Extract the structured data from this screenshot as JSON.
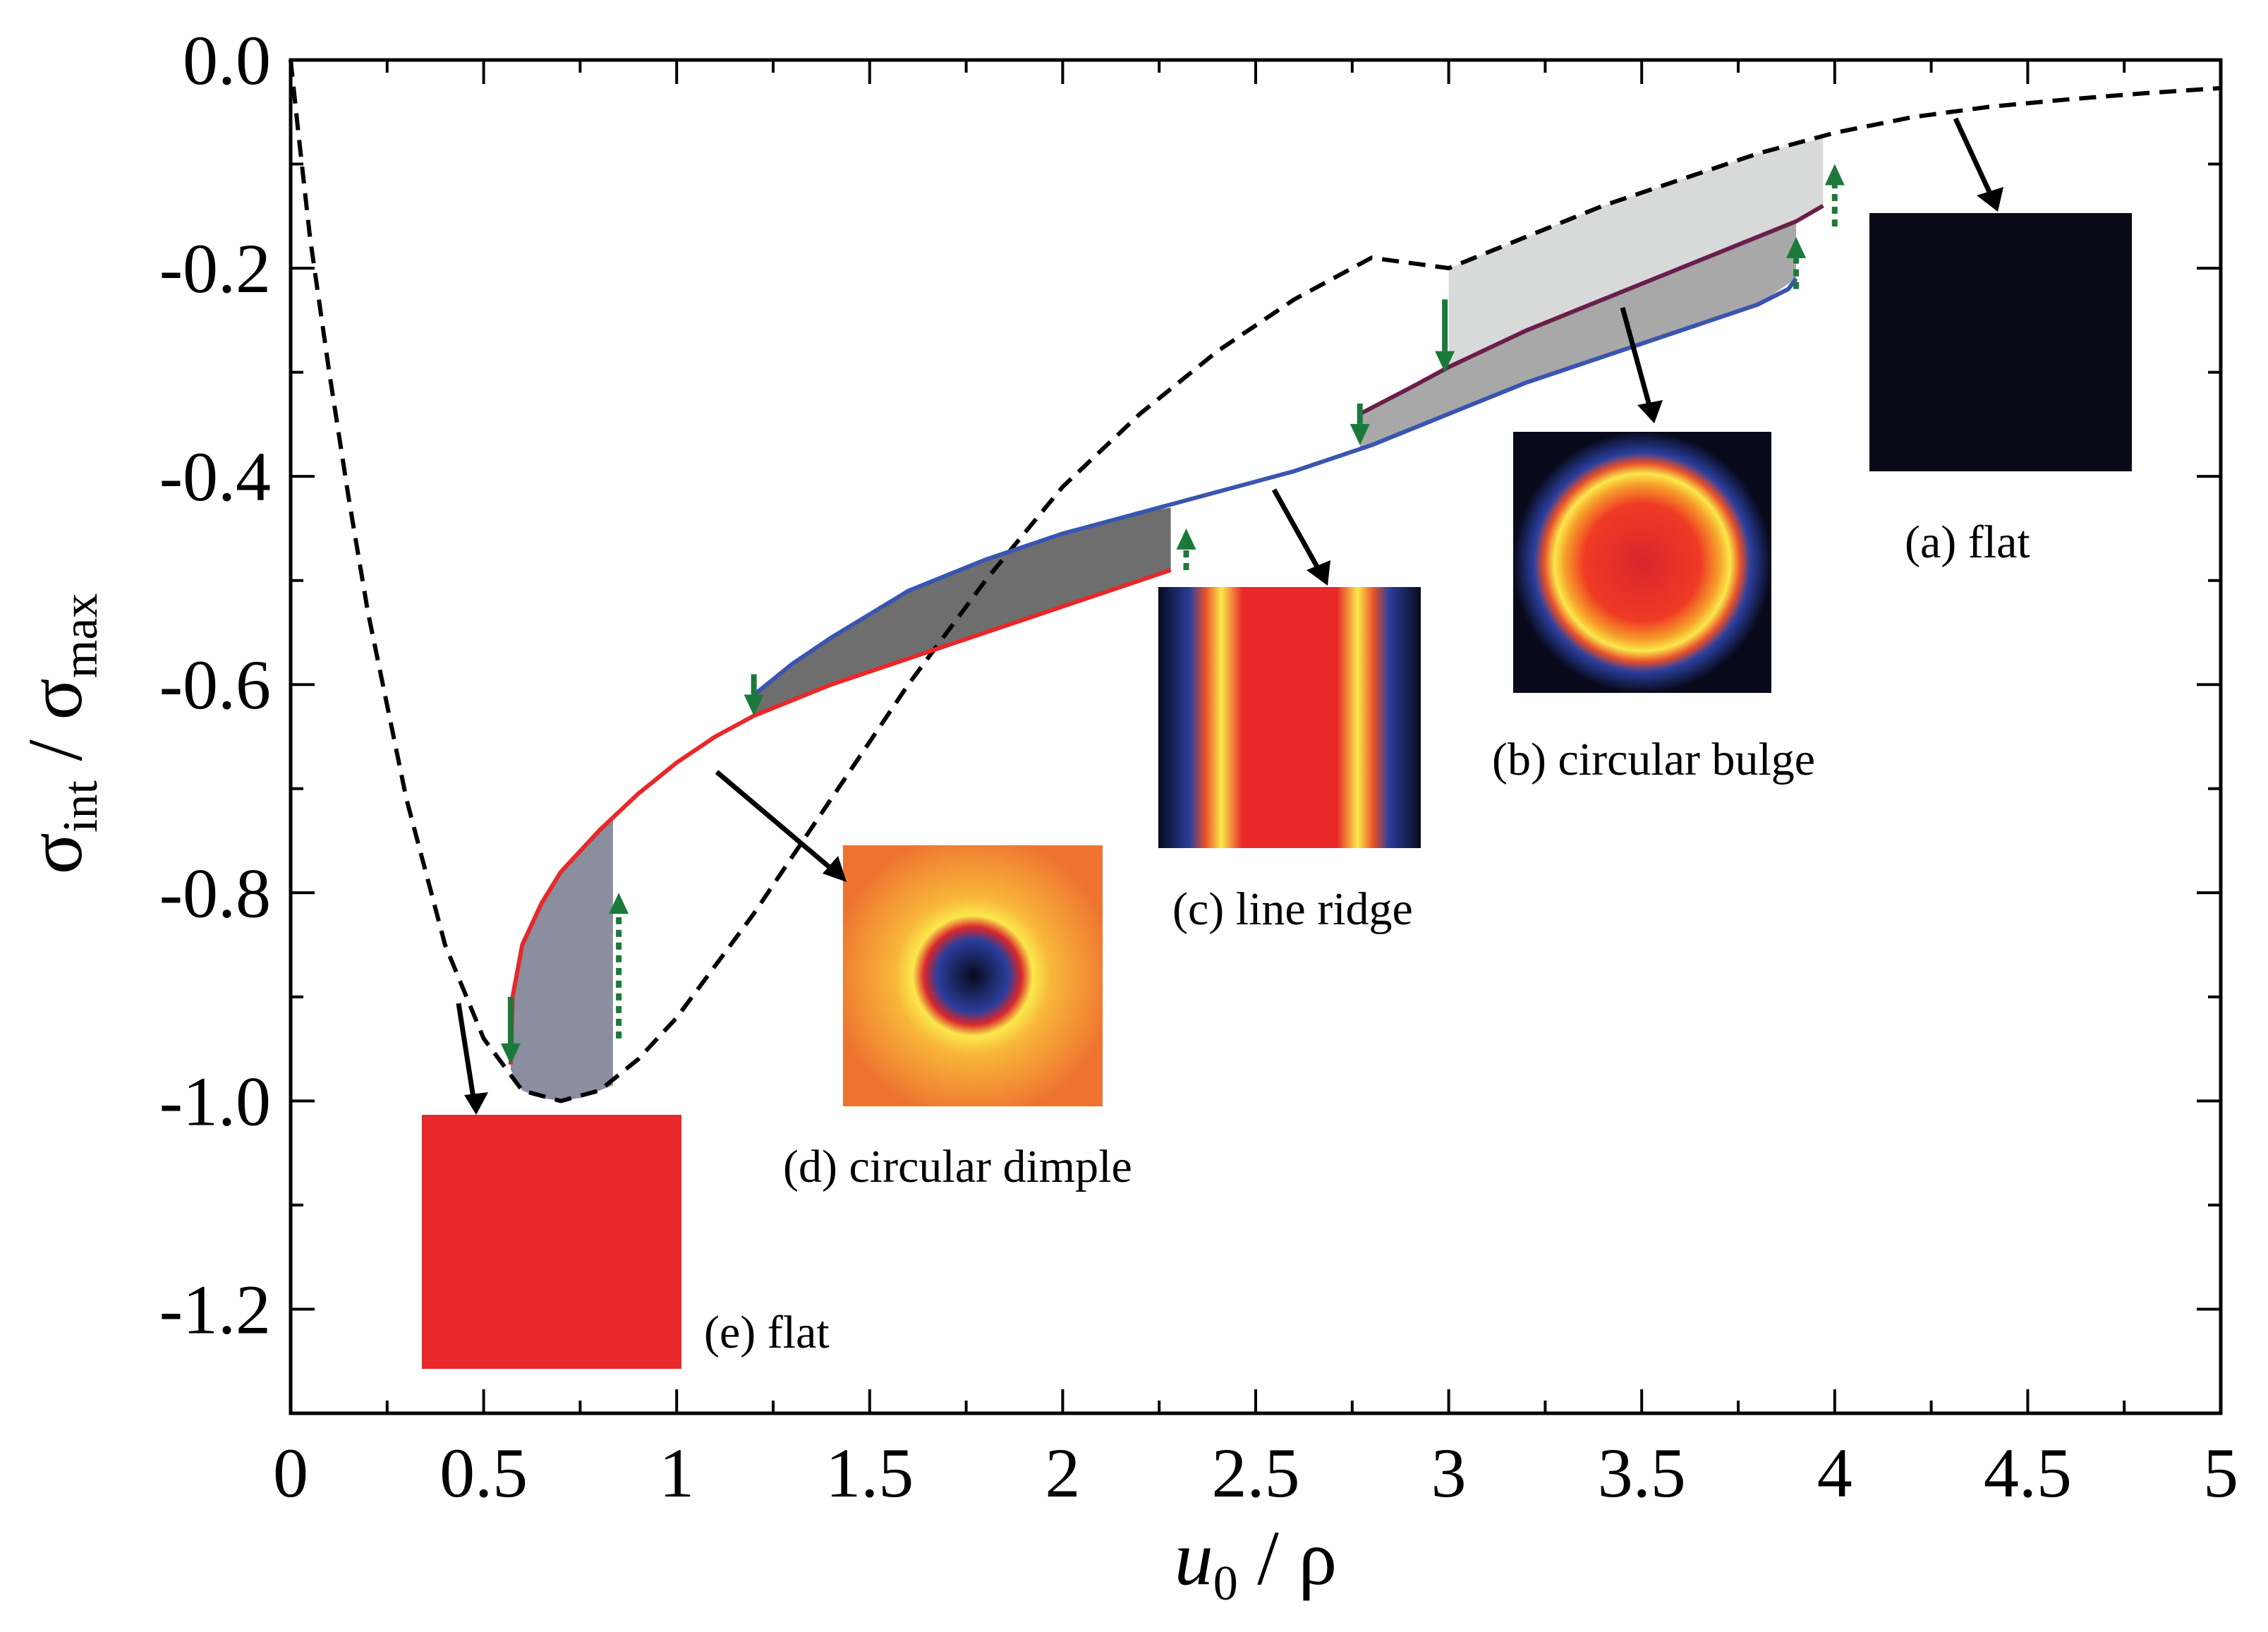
{
  "chart_data": {
    "type": "line",
    "title": "",
    "xlabel": {
      "main": "u",
      "sub": "0",
      "tail": " / ρ"
    },
    "ylabel": {
      "main": "σ",
      "sub": "int",
      "mid": " / σ",
      "sub2": "max"
    },
    "xlim": [
      0,
      5
    ],
    "ylim": [
      -1.3,
      0.0
    ],
    "x_ticks": [
      0,
      0.5,
      1,
      1.5,
      2,
      2.5,
      3,
      3.5,
      4,
      4.5,
      5
    ],
    "x_tick_labels": [
      "0",
      "0.5",
      "1",
      "1.5",
      "2",
      "2.5",
      "3",
      "3.5",
      "4",
      "4.5",
      "5"
    ],
    "y_ticks": [
      0.0,
      -0.2,
      -0.4,
      -0.6,
      -0.8,
      -1.0,
      -1.2
    ],
    "y_tick_labels": [
      "0.0",
      "-0.2",
      "-0.4",
      "-0.6",
      "-0.8",
      "-1.0",
      "-1.2"
    ],
    "series": [
      {
        "name": "flat",
        "style": "dashed",
        "color": "#000000",
        "x": [
          0.0,
          0.02,
          0.05,
          0.1,
          0.15,
          0.2,
          0.3,
          0.4,
          0.5,
          0.6,
          0.7,
          0.8,
          0.9,
          1.0,
          1.2,
          1.4,
          1.6,
          1.8,
          2.0,
          2.2,
          2.4,
          2.6,
          2.8,
          3.0,
          3.2,
          3.4,
          3.6,
          3.8,
          4.0,
          4.2,
          4.4,
          4.6,
          4.8,
          5.0
        ],
        "y": [
          0.0,
          -0.07,
          -0.17,
          -0.3,
          -0.42,
          -0.53,
          -0.71,
          -0.85,
          -0.94,
          -0.99,
          -1.0,
          -0.99,
          -0.96,
          -0.92,
          -0.82,
          -0.71,
          -0.6,
          -0.5,
          -0.41,
          -0.34,
          -0.28,
          -0.23,
          -0.19,
          -0.2,
          -0.17,
          -0.14,
          -0.115,
          -0.09,
          -0.07,
          -0.055,
          -0.045,
          -0.038,
          -0.032,
          -0.027
        ]
      },
      {
        "name": "circular dimple",
        "style": "solid",
        "color": "#e8282a",
        "x": [
          0.57,
          0.575,
          0.6,
          0.65,
          0.7,
          0.8,
          0.9,
          1.0,
          1.1,
          1.2,
          1.4,
          1.6,
          1.8,
          2.0,
          2.2,
          2.28
        ],
        "y": [
          -0.965,
          -0.9,
          -0.85,
          -0.81,
          -0.78,
          -0.74,
          -0.705,
          -0.675,
          -0.65,
          -0.63,
          -0.6,
          -0.575,
          -0.55,
          -0.525,
          -0.5,
          -0.49
        ]
      },
      {
        "name": "line ridge",
        "style": "solid",
        "color": "#3a55b0",
        "x": [
          1.2,
          1.3,
          1.4,
          1.6,
          1.8,
          2.0,
          2.2,
          2.4,
          2.6,
          2.8,
          3.0,
          3.2,
          3.4,
          3.6,
          3.8,
          3.88,
          3.9
        ],
        "y": [
          -0.61,
          -0.58,
          -0.555,
          -0.51,
          -0.48,
          -0.455,
          -0.435,
          -0.415,
          -0.395,
          -0.37,
          -0.34,
          -0.31,
          -0.285,
          -0.26,
          -0.235,
          -0.22,
          -0.21
        ]
      },
      {
        "name": "circular bulge",
        "style": "solid",
        "color": "#6a1f4a",
        "x": [
          2.77,
          2.9,
          3.0,
          3.2,
          3.4,
          3.6,
          3.8,
          3.9,
          3.97
        ],
        "y": [
          -0.34,
          -0.315,
          -0.295,
          -0.26,
          -0.23,
          -0.2,
          -0.17,
          -0.155,
          -0.14
        ]
      }
    ],
    "shaded_regions": [
      {
        "x": [
          0.57,
          0.58,
          0.6,
          0.65,
          0.7,
          0.75,
          0.8,
          0.835,
          0.835,
          0.8,
          0.75,
          0.7,
          0.65,
          0.6,
          0.57
        ],
        "y": [
          -0.965,
          -0.9,
          -0.85,
          -0.81,
          -0.78,
          -0.76,
          -0.74,
          -0.73,
          -0.985,
          -0.99,
          -0.997,
          -1.0,
          -0.997,
          -0.99,
          -0.97
        ],
        "color": "#8a8e9e"
      },
      {
        "x": [
          1.2,
          1.4,
          1.6,
          1.8,
          2.0,
          2.2,
          2.28,
          2.28,
          2.2,
          2.0,
          1.8,
          1.6,
          1.4,
          1.2
        ],
        "y": [
          -0.61,
          -0.555,
          -0.51,
          -0.48,
          -0.455,
          -0.435,
          -0.43,
          -0.49,
          -0.5,
          -0.525,
          -0.55,
          -0.575,
          -0.6,
          -0.63
        ],
        "color": "#6e6e6e"
      },
      {
        "x": [
          2.77,
          3.0,
          3.2,
          3.4,
          3.6,
          3.8,
          3.9,
          3.9,
          3.8,
          3.6,
          3.4,
          3.2,
          3.0,
          2.77
        ],
        "y": [
          -0.34,
          -0.295,
          -0.26,
          -0.23,
          -0.2,
          -0.17,
          -0.155,
          -0.21,
          -0.235,
          -0.26,
          -0.285,
          -0.31,
          -0.34,
          -0.375
        ],
        "color": "#a8a8a8"
      },
      {
        "x": [
          3.0,
          3.2,
          3.4,
          3.6,
          3.8,
          3.97,
          3.97,
          3.8,
          3.6,
          3.4,
          3.2,
          3.0
        ],
        "y": [
          -0.2,
          -0.17,
          -0.14,
          -0.115,
          -0.09,
          -0.075,
          -0.14,
          -0.17,
          -0.2,
          -0.23,
          -0.26,
          -0.295
        ],
        "color": "#d8dada"
      }
    ],
    "transition_arrows": [
      {
        "x": 0.57,
        "y_from": -0.9,
        "y_to": -0.965,
        "dir": "down",
        "style": "solid"
      },
      {
        "x": 0.85,
        "y_from": -0.94,
        "y_to": -0.8,
        "dir": "up",
        "style": "dotted"
      },
      {
        "x": 1.2,
        "y_from": -0.59,
        "y_to": -0.63,
        "dir": "down",
        "style": "solid"
      },
      {
        "x": 2.32,
        "y_from": -0.49,
        "y_to": -0.45,
        "dir": "up",
        "style": "dotted"
      },
      {
        "x": 2.77,
        "y_from": -0.33,
        "y_to": -0.37,
        "dir": "down",
        "style": "solid"
      },
      {
        "x": 2.99,
        "y_from": -0.23,
        "y_to": -0.3,
        "dir": "down",
        "style": "solid"
      },
      {
        "x": 3.9,
        "y_from": -0.22,
        "y_to": -0.17,
        "dir": "up",
        "style": "dotted"
      },
      {
        "x": 4.0,
        "y_from": -0.16,
        "y_to": -0.1,
        "dir": "up",
        "style": "dotted"
      }
    ],
    "insets": [
      {
        "id": "a",
        "label": "(a) flat",
        "pattern": "flat-dark",
        "color": "#0a0a16",
        "points_to": [
          4.3,
          -0.05
        ]
      },
      {
        "id": "b",
        "label": "(b) circular bulge",
        "pattern": "ring",
        "points_to": [
          3.5,
          -0.245
        ]
      },
      {
        "id": "c",
        "label": "(c) line ridge",
        "pattern": "stripes",
        "points_to": [
          2.55,
          -0.42
        ]
      },
      {
        "id": "d",
        "label": "(d) circular dimple",
        "pattern": "dimple",
        "points_to": [
          1.1,
          -0.66
        ]
      },
      {
        "id": "e",
        "label": "(e) flat",
        "pattern": "flat-red",
        "color": "#e8282a",
        "points_to": [
          0.43,
          -0.9
        ]
      }
    ],
    "colors": {
      "arrow_green": "#1b7a3a",
      "annotation_arrow": "#000000"
    }
  }
}
